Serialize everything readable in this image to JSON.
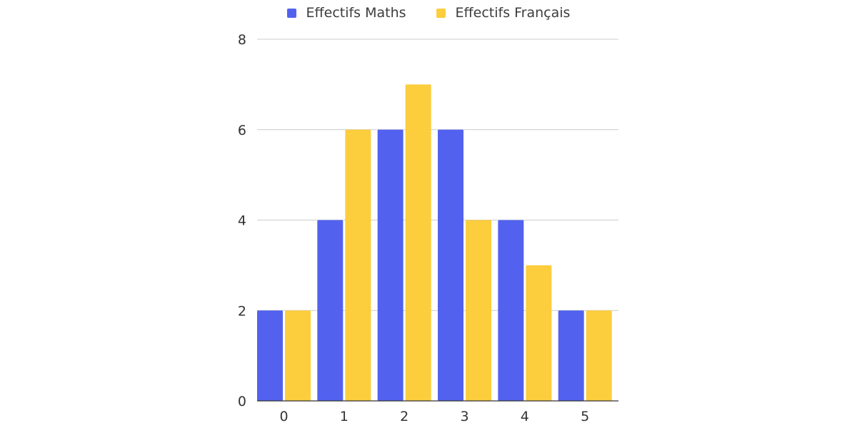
{
  "chart_data": {
    "type": "bar",
    "categories": [
      "0",
      "1",
      "2",
      "3",
      "4",
      "5"
    ],
    "series": [
      {
        "name": "Effectifs Maths",
        "color": "#5262ee",
        "values": [
          2,
          4,
          6,
          6,
          4,
          2
        ]
      },
      {
        "name": "Effectifs Français",
        "color": "#fccd3d",
        "values": [
          2,
          6,
          7,
          4,
          3,
          2
        ]
      }
    ],
    "yticks": [
      "0",
      "2",
      "4",
      "6",
      "8"
    ],
    "ylim": [
      0,
      8
    ],
    "grid": true,
    "legend_position": "top-center"
  }
}
